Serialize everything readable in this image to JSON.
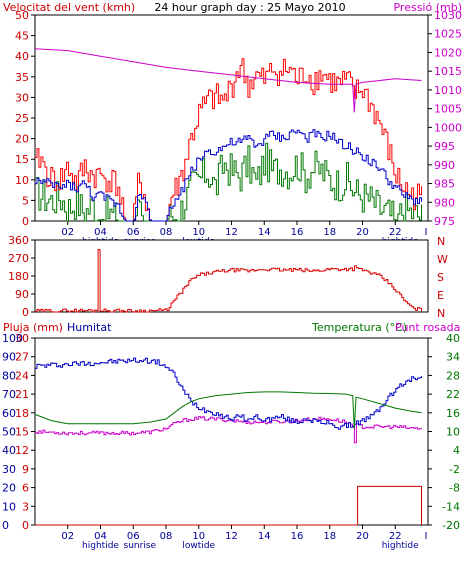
{
  "header": {
    "title": "24 hour graph day : 25 Mayo 2010",
    "left_label": "Velocitat del vent (kmh)",
    "right_label": "Pressió (mb)"
  },
  "colors": {
    "gust": "#ff0000",
    "avg_wind": "#0000cc",
    "min_wind": "#007700",
    "pressure": "#cc00cc",
    "direction": "#dd0000",
    "humidity": "#0000cc",
    "temperature": "#007700",
    "dewpoint": "#cc00cc",
    "rain": "#cc0000",
    "axis_red": "#cc0000",
    "axis_blue": "#000099",
    "axis_green": "#007700",
    "axis_magenta": "#cc00cc"
  },
  "x_axis": {
    "tick_labels": [
      "02",
      "04",
      "06",
      "08",
      "10",
      "12",
      "14",
      "16",
      "18",
      "20",
      "22"
    ],
    "events": [
      {
        "label": "hightide",
        "hour": 4.0
      },
      {
        "label": "sunrise",
        "hour": 6.4
      },
      {
        "label": "lowtide",
        "hour": 10.0
      },
      {
        "label": "hightide",
        "hour": 22.3
      }
    ],
    "end_label": "I"
  },
  "chart_data": [
    {
      "type": "line",
      "title": "24 hour graph day : 25 Mayo 2010",
      "ylabel": "Velocitat del vent (kmh)",
      "ylabel_right": "Pressió (mb)",
      "xlim": [
        0,
        24
      ],
      "ylim": [
        0,
        50
      ],
      "ylim_right": [
        975,
        1030
      ],
      "yticks": [
        0,
        5,
        10,
        15,
        20,
        25,
        30,
        35,
        40,
        45,
        50
      ],
      "yticks_right": [
        975,
        980,
        985,
        990,
        995,
        1000,
        1005,
        1010,
        1015,
        1020,
        1025,
        1030
      ],
      "series": [
        {
          "name": "Gust",
          "axis": "left",
          "x": [
            0,
            0.3,
            0.6,
            1,
            1.5,
            2,
            2.5,
            3,
            3.5,
            4,
            4.5,
            5,
            5.5,
            6,
            6.3,
            6.6,
            7,
            7.5,
            8,
            8.3,
            8.6,
            9,
            9.5,
            10,
            10.5,
            11,
            11.5,
            12,
            12.5,
            13,
            13.5,
            14,
            14.5,
            15,
            15.5,
            16,
            16.5,
            17,
            17.5,
            18,
            18.5,
            19,
            19.5,
            20,
            20.5,
            21,
            21.5,
            22,
            22.5,
            23,
            23.6
          ],
          "values": [
            13,
            16,
            12,
            10,
            10,
            13,
            9,
            13,
            11,
            11,
            10,
            9,
            0,
            0,
            10,
            7,
            0,
            0,
            0,
            6,
            8,
            12,
            20,
            26,
            29,
            30,
            29,
            33,
            38,
            33,
            35,
            34,
            37,
            36,
            37,
            34,
            36,
            34,
            36,
            34,
            33,
            34,
            31,
            32,
            28,
            24,
            18,
            11,
            8,
            6,
            6
          ]
        },
        {
          "name": "Average",
          "axis": "left",
          "x": [
            0,
            0.5,
            1,
            1.5,
            2,
            2.5,
            3,
            3.5,
            4,
            4.5,
            5,
            5.5,
            6,
            6.3,
            6.6,
            7,
            7.5,
            8,
            8.3,
            8.6,
            9,
            9.5,
            10,
            10.5,
            11,
            11.5,
            12,
            12.5,
            13,
            13.5,
            14,
            14.5,
            15,
            15.5,
            16,
            16.5,
            17,
            17.5,
            18,
            18.5,
            19,
            19.5,
            20,
            20.5,
            21,
            21.5,
            22,
            22.5,
            23,
            23.6
          ],
          "values": [
            10,
            9,
            9,
            8,
            9,
            8,
            9,
            6,
            6,
            5,
            4,
            0,
            0,
            8,
            6,
            0,
            0,
            0,
            4,
            5,
            8,
            12,
            15,
            17,
            17,
            18,
            19,
            19,
            20,
            18,
            20,
            21,
            20,
            21,
            22,
            20,
            21,
            20,
            21,
            19,
            18,
            17,
            16,
            14,
            13,
            10,
            8,
            6,
            5,
            5
          ]
        },
        {
          "name": "Minimum",
          "axis": "left",
          "x": [
            0,
            0.5,
            1,
            1.5,
            2,
            2.5,
            3,
            3.5,
            4,
            4.5,
            5,
            5.5,
            6,
            6.3,
            6.6,
            7,
            7.5,
            8,
            8.3,
            8.6,
            9,
            9.5,
            10,
            10.5,
            11,
            11.5,
            12,
            12.5,
            13,
            13.5,
            14,
            14.5,
            15,
            15.5,
            16,
            16.5,
            17,
            17.5,
            18,
            18.5,
            19,
            19.5,
            20,
            20.5,
            21,
            21.5,
            22,
            22.5,
            23,
            23.6
          ],
          "values": [
            7,
            6,
            5,
            6,
            3,
            5,
            2,
            4,
            0,
            2,
            0,
            0,
            0,
            7,
            0,
            0,
            0,
            0,
            2,
            0,
            4,
            8,
            10,
            12,
            8,
            14,
            12,
            11,
            14,
            9,
            15,
            12,
            13,
            12,
            14,
            11,
            13,
            12,
            10,
            9,
            10,
            7,
            6,
            5,
            3,
            2,
            0,
            3,
            2,
            1
          ]
        },
        {
          "name": "Pressure",
          "axis": "right",
          "x": [
            0,
            2,
            4,
            6,
            8,
            10,
            12,
            14,
            16,
            18,
            19.4,
            19.5,
            19.6,
            20,
            22,
            23.6
          ],
          "values": [
            1021,
            1020.5,
            1019,
            1017.5,
            1016,
            1015,
            1014,
            1013,
            1012,
            1011.5,
            1011.5,
            1004,
            1011.5,
            1012,
            1013,
            1012.5
          ]
        }
      ]
    },
    {
      "type": "line",
      "xlim": [
        0,
        24
      ],
      "ylim": [
        0,
        360
      ],
      "yticks": [
        0,
        90,
        180,
        270,
        360
      ],
      "compass_labels": [
        "N",
        "W",
        "S",
        "E",
        "N"
      ],
      "series": [
        {
          "name": "Direction",
          "x": [
            0,
            3.8,
            3.85,
            3.9,
            4,
            6,
            8,
            8.5,
            9,
            9.5,
            10,
            11,
            12,
            13,
            14,
            15,
            16,
            17,
            18,
            19,
            19.5,
            19.55,
            19.6,
            20,
            21,
            21.5,
            22,
            22.5,
            23,
            23.6
          ],
          "values": [
            5,
            8,
            340,
            8,
            8,
            5,
            8,
            60,
            110,
            160,
            185,
            200,
            210,
            205,
            215,
            210,
            210,
            205,
            215,
            215,
            215,
            330,
            215,
            210,
            180,
            150,
            110,
            60,
            20,
            10
          ]
        }
      ]
    },
    {
      "type": "line",
      "xlim": [
        0,
        24
      ],
      "ylabel": "Pluja (mm)",
      "ylabel_right": "Temperatura (°C)",
      "ylim": [
        0,
        30
      ],
      "yticks": [
        0,
        3,
        6,
        9,
        12,
        15,
        18,
        21,
        24,
        27,
        30
      ],
      "ylim_humidity": [
        0,
        100
      ],
      "yticks_humidity": [
        0,
        10,
        20,
        30,
        40,
        50,
        60,
        70,
        80,
        90,
        100
      ],
      "ylim_right": [
        -20,
        40
      ],
      "yticks_right": [
        -20,
        -14,
        -8,
        -2,
        4,
        10,
        16,
        22,
        28,
        34,
        40
      ],
      "legend": [
        "Humitat",
        "Temperatura (°C)",
        "Punt rosada"
      ],
      "series": [
        {
          "name": "Humitat",
          "axis": "humidity",
          "x": [
            0,
            2,
            4,
            6,
            7,
            7.8,
            8.5,
            9,
            9.5,
            10,
            10.5,
            11,
            11.5,
            12,
            12.5,
            13,
            13.5,
            14,
            14.5,
            15,
            15.5,
            16,
            16.5,
            17,
            17.5,
            18,
            18.5,
            19,
            19.5,
            20,
            20.5,
            21,
            21.5,
            22,
            22.5,
            23,
            23.6
          ],
          "values": [
            85,
            86,
            87,
            88,
            88,
            86,
            80,
            72,
            66,
            63,
            61,
            60,
            58,
            57,
            58,
            56,
            58,
            56,
            57,
            58,
            56,
            55,
            57,
            56,
            54,
            55,
            52,
            53,
            54,
            56,
            58,
            62,
            68,
            72,
            76,
            78,
            80
          ]
        },
        {
          "name": "Temperatura (°C)",
          "axis": "right",
          "x": [
            0,
            1,
            2,
            4,
            6,
            7,
            8,
            8.5,
            9,
            9.5,
            10,
            11,
            12,
            13,
            14,
            15,
            16,
            17,
            18,
            19,
            19.4,
            19.5,
            19.6,
            20,
            21,
            22,
            23,
            23.6
          ],
          "values": [
            15.5,
            13.5,
            12.5,
            12.5,
            12.5,
            13,
            14,
            16,
            18,
            19.5,
            20.5,
            21.5,
            22,
            22.5,
            22.7,
            22.7,
            22.5,
            22.3,
            22.2,
            22,
            21.5,
            11,
            21,
            20.5,
            19,
            17.5,
            16.5,
            16
          ]
        },
        {
          "name": "Punt rosada",
          "axis": "right",
          "x": [
            0,
            2,
            4,
            6,
            7,
            8,
            8.5,
            9,
            9.5,
            10,
            11,
            12,
            13,
            14,
            15,
            16,
            17,
            18,
            19,
            19.4,
            19.5,
            19.6,
            20,
            21,
            22,
            23,
            23.6
          ],
          "values": [
            10,
            9.5,
            9.5,
            9.5,
            9.8,
            11,
            12.5,
            13.5,
            14,
            14.2,
            14,
            13.5,
            13,
            13,
            13.2,
            13.5,
            14,
            14,
            13,
            12,
            6,
            12,
            11.5,
            11.5,
            11.5,
            11,
            11
          ]
        },
        {
          "name": "Pluja (mm)",
          "axis": "left",
          "x": [
            0,
            19.7,
            19.7,
            23.6,
            23.6
          ],
          "values": [
            0,
            0,
            6.2,
            6.2,
            0
          ]
        }
      ]
    }
  ]
}
